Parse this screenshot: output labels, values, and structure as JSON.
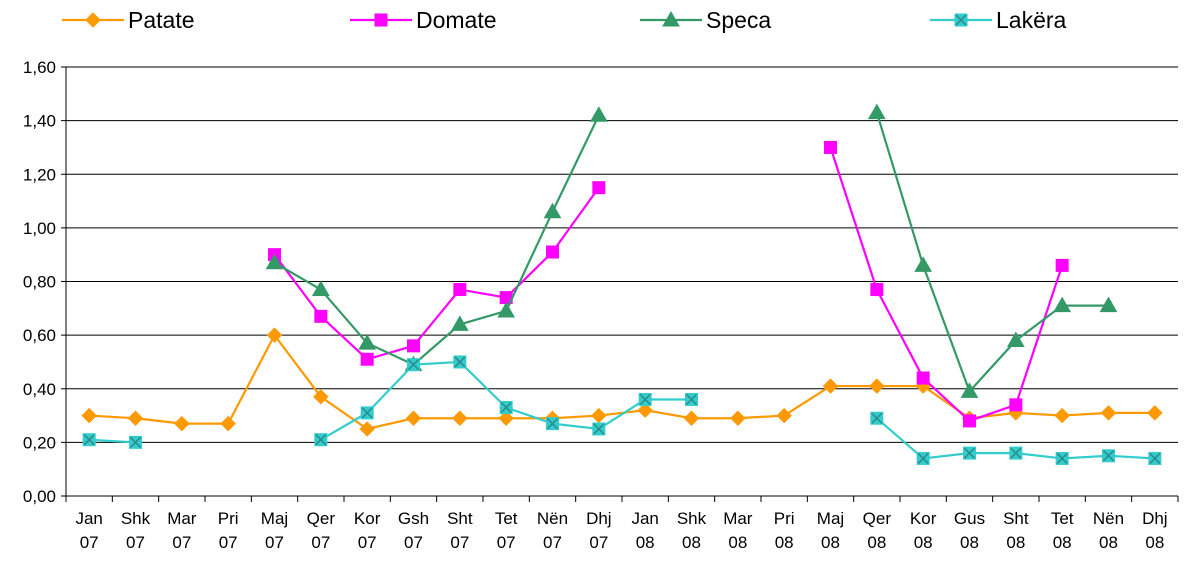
{
  "chart_data": {
    "type": "line",
    "title": "",
    "xlabel": "",
    "ylabel": "",
    "ylim": [
      0,
      1.6
    ],
    "y_ticks": [
      "0,00",
      "0,20",
      "0,40",
      "0,60",
      "0,80",
      "1,00",
      "1,20",
      "1,40",
      "1,60"
    ],
    "y_tick_values": [
      0,
      0.2,
      0.4,
      0.6,
      0.8,
      1.0,
      1.2,
      1.4,
      1.6
    ],
    "grid": true,
    "legend_position": "top",
    "categories": [
      [
        "Jan",
        "07"
      ],
      [
        "Shk",
        "07"
      ],
      [
        "Mar",
        "07"
      ],
      [
        "Pri",
        "07"
      ],
      [
        "Maj",
        "07"
      ],
      [
        "Qer",
        "07"
      ],
      [
        "Kor",
        "07"
      ],
      [
        "Gsh",
        "07"
      ],
      [
        "Sht",
        "07"
      ],
      [
        "Tet",
        "07"
      ],
      [
        "Nën",
        "07"
      ],
      [
        "Dhj",
        "07"
      ],
      [
        "Jan",
        "08"
      ],
      [
        "Shk",
        "08"
      ],
      [
        "Mar",
        "08"
      ],
      [
        "Pri",
        "08"
      ],
      [
        "Maj",
        "08"
      ],
      [
        "Qer",
        "08"
      ],
      [
        "Kor",
        "08"
      ],
      [
        "Gus",
        "08"
      ],
      [
        "Sht",
        "08"
      ],
      [
        "Tet",
        "08"
      ],
      [
        "Nën",
        "08"
      ],
      [
        "Dhj",
        "08"
      ]
    ],
    "series": [
      {
        "name": "Patate",
        "color": "#FF9900",
        "marker": "diamond",
        "values": [
          0.3,
          0.29,
          0.27,
          0.27,
          0.6,
          0.37,
          0.25,
          0.29,
          0.29,
          0.29,
          0.29,
          0.3,
          0.32,
          0.29,
          0.29,
          0.3,
          0.41,
          0.41,
          0.41,
          0.29,
          0.31,
          0.3,
          0.31,
          0.31
        ]
      },
      {
        "name": "Domate",
        "color": "#FF00FF",
        "marker": "square",
        "values": [
          null,
          null,
          null,
          null,
          0.9,
          0.67,
          0.51,
          0.56,
          0.77,
          0.74,
          0.91,
          1.15,
          null,
          null,
          null,
          null,
          1.3,
          0.77,
          0.44,
          0.28,
          0.34,
          0.86,
          null,
          null
        ]
      },
      {
        "name": "Speca",
        "color": "#339966",
        "marker": "triangle",
        "values": [
          null,
          null,
          null,
          null,
          0.87,
          0.77,
          0.57,
          0.49,
          0.64,
          0.69,
          1.06,
          1.42,
          null,
          null,
          null,
          null,
          null,
          1.43,
          0.86,
          0.39,
          0.58,
          0.71,
          0.71,
          null
        ]
      },
      {
        "name": "Lakëra",
        "color": "#33CCCC",
        "marker": "x-square",
        "values": [
          0.21,
          0.2,
          null,
          null,
          null,
          0.21,
          0.31,
          0.49,
          0.5,
          0.33,
          0.27,
          0.25,
          0.36,
          0.36,
          null,
          null,
          null,
          0.29,
          0.14,
          0.16,
          0.16,
          0.14,
          0.15,
          0.14
        ]
      }
    ]
  }
}
